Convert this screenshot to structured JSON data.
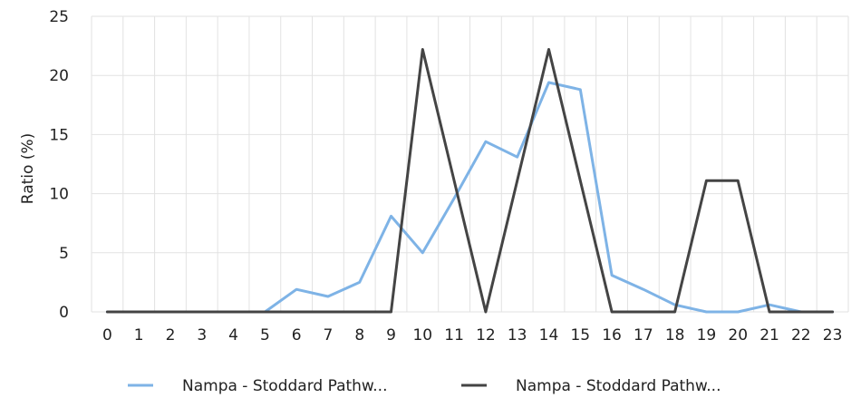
{
  "chart_data": {
    "type": "line",
    "ylabel": "Ratio (%)",
    "xlabel": "",
    "x": [
      0,
      1,
      2,
      3,
      4,
      5,
      6,
      7,
      8,
      9,
      10,
      11,
      12,
      13,
      14,
      15,
      16,
      17,
      18,
      19,
      20,
      21,
      22,
      23
    ],
    "x_tick_labels": [
      "0",
      "1",
      "2",
      "3",
      "4",
      "5",
      "6",
      "7",
      "8",
      "9",
      "10",
      "11",
      "12",
      "13",
      "14",
      "15",
      "16",
      "17",
      "18",
      "19",
      "20",
      "21",
      "22",
      "23"
    ],
    "ylim": [
      0,
      25
    ],
    "y_ticks": [
      0,
      5,
      10,
      15,
      20,
      25
    ],
    "y_tick_labels": [
      "0",
      "5",
      "10",
      "15",
      "20",
      "25"
    ],
    "grid": true,
    "legend_position": "bottom",
    "series": [
      {
        "name": "Nampa - Stoddard Pathw...",
        "color": "#7EB3E6",
        "values": [
          0,
          0,
          0,
          0,
          0,
          0,
          1.9,
          1.3,
          2.5,
          8.1,
          5.0,
          9.6,
          14.4,
          13.1,
          19.4,
          18.8,
          3.1,
          1.9,
          0.6,
          0,
          0,
          0.6,
          0,
          0
        ]
      },
      {
        "name": "Nampa - Stoddard Pathw...",
        "color": "#444444",
        "values": [
          0,
          0,
          0,
          0,
          0,
          0,
          0,
          0,
          0,
          0,
          22.2,
          11.1,
          0,
          11.1,
          22.2,
          11.1,
          0,
          0,
          0,
          11.1,
          11.1,
          0,
          0,
          0
        ]
      }
    ]
  }
}
